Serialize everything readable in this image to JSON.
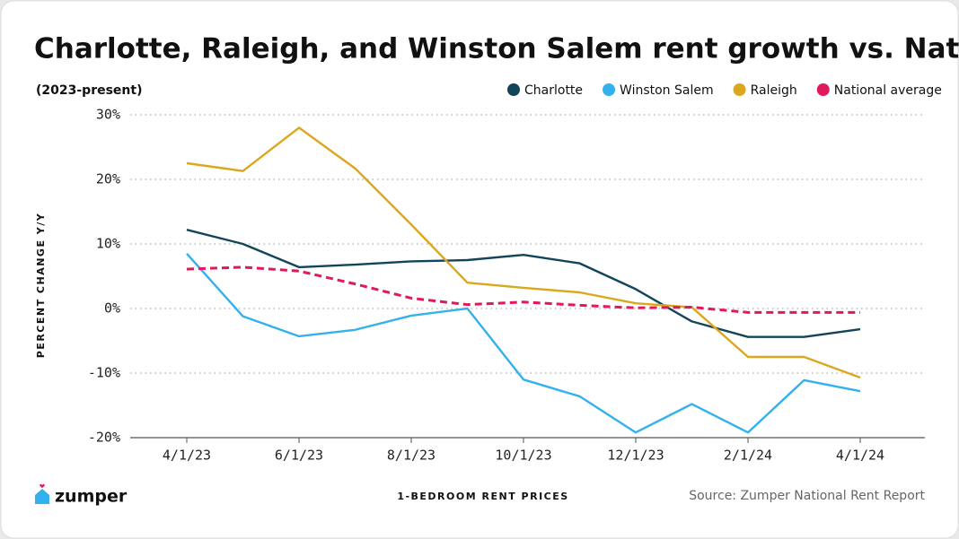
{
  "logo": "zumper",
  "chart_data": {
    "type": "line",
    "title": "Charlotte, Raleigh, and Winston Salem rent growth vs. National",
    "subtitle": "(2023-present)",
    "y_label": "PERCENT CHANGE Y/Y",
    "x_label": "1-BEDROOM RENT PRICES",
    "source": "Source: Zumper National Rent Report",
    "categories": [
      "4/1/23",
      null,
      "6/1/23",
      null,
      "8/1/23",
      null,
      "10/1/23",
      null,
      "12/1/23",
      null,
      "2/1/24",
      null,
      "4/1/24"
    ],
    "series": [
      {
        "name": "Charlotte",
        "color": "#124559",
        "values": [
          12.2,
          10,
          6.4,
          6.8,
          7.3,
          7.5,
          8.3,
          7,
          3,
          -2,
          -4.4,
          -4.4,
          -3.2
        ]
      },
      {
        "name": "Winston Salem",
        "color": "#33b1ee",
        "values": [
          8.5,
          -1.2,
          -4.3,
          -3.3,
          -1.1,
          0,
          -11,
          -13.6,
          -19.2,
          -14.8,
          -19.2,
          -11.1,
          -12.8
        ]
      },
      {
        "name": "Raleigh",
        "color": "#dba71d",
        "values": [
          22.5,
          21.3,
          28,
          21.7,
          13,
          4,
          3.2,
          2.5,
          0.8,
          0.2,
          -7.5,
          -7.5,
          -10.7
        ]
      },
      {
        "name": "National average",
        "color": "#e0195a",
        "dashed": true,
        "values": [
          6.1,
          6.4,
          5.8,
          3.8,
          1.6,
          0.6,
          1.0,
          0.5,
          0.1,
          0.2,
          -0.6,
          -0.6,
          -0.6
        ]
      }
    ],
    "ylim": [
      -20,
      30
    ],
    "yticks": [
      {
        "value": -20,
        "label": "-20%"
      },
      {
        "value": -10,
        "label": "-10%"
      },
      {
        "value": 0,
        "label": "0%"
      },
      {
        "value": 10,
        "label": "10%"
      },
      {
        "value": 20,
        "label": "20%"
      },
      {
        "value": 30,
        "label": "30%"
      }
    ],
    "grid": true,
    "legend": "top-right"
  }
}
